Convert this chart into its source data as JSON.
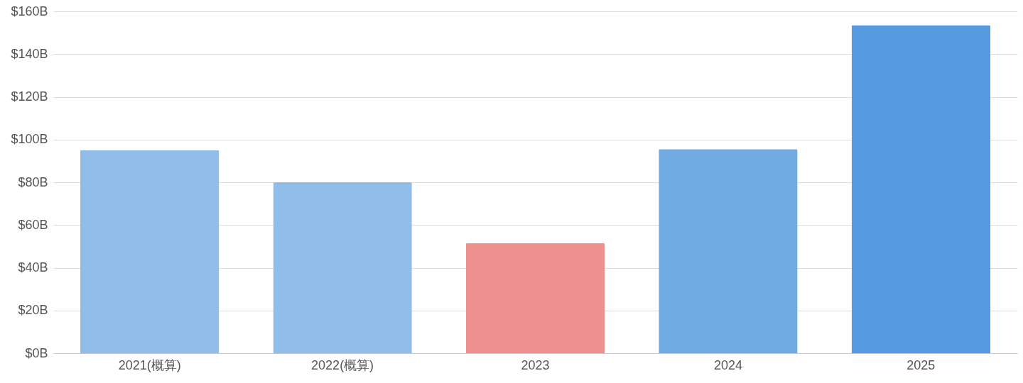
{
  "chart_data": {
    "type": "bar",
    "categories": [
      "2021(概算)",
      "2022(概算)",
      "2023",
      "2024",
      "2025"
    ],
    "values": [
      95,
      80,
      51.5,
      95.5,
      153.5
    ],
    "colors": [
      "#90bde9",
      "#90bde9",
      "#ed908e",
      "#70abe4",
      "#559ae0"
    ],
    "ylim": [
      0,
      160
    ],
    "yticks": [
      {
        "value": 0,
        "label": "$0B"
      },
      {
        "value": 20,
        "label": "$20B"
      },
      {
        "value": 40,
        "label": "$40B"
      },
      {
        "value": 60,
        "label": "$60B"
      },
      {
        "value": 80,
        "label": "$80B"
      },
      {
        "value": 100,
        "label": "$100B"
      },
      {
        "value": 120,
        "label": "$120B"
      },
      {
        "value": 140,
        "label": "$140B"
      },
      {
        "value": 160,
        "label": "$160B"
      }
    ],
    "grid": "y"
  }
}
